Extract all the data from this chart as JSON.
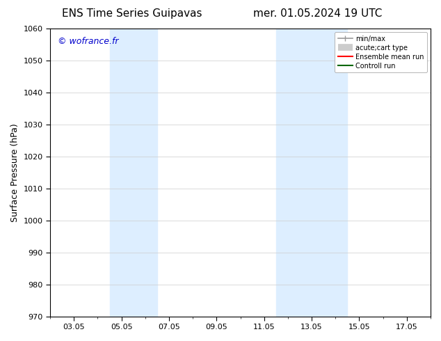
{
  "title_left": "ENS Time Series Guipavas",
  "title_right": "mer. 01.05.2024 19 UTC",
  "ylabel": "Surface Pressure (hPa)",
  "ylim": [
    970,
    1060
  ],
  "yticks": [
    970,
    980,
    990,
    1000,
    1010,
    1020,
    1030,
    1040,
    1050,
    1060
  ],
  "xtick_labels": [
    "03.05",
    "05.05",
    "07.05",
    "09.05",
    "11.05",
    "13.05",
    "15.05",
    "17.05"
  ],
  "xtick_positions": [
    2,
    4,
    6,
    8,
    10,
    12,
    14,
    16
  ],
  "xlim": [
    1,
    17
  ],
  "shaded_bands": [
    {
      "x_start": 3.5,
      "x_end": 5.5
    },
    {
      "x_start": 10.5,
      "x_end": 12.0
    },
    {
      "x_start": 12.0,
      "x_end": 13.5
    }
  ],
  "band_color": "#ddeeff",
  "watermark_text": "© wofrance.fr",
  "watermark_color": "#0000cc",
  "watermark_fontsize": 9,
  "title_fontsize": 11,
  "background_color": "#ffffff",
  "grid_color": "#cccccc",
  "legend_fontsize": 7,
  "ylabel_fontsize": 9,
  "tick_labelsize": 8
}
